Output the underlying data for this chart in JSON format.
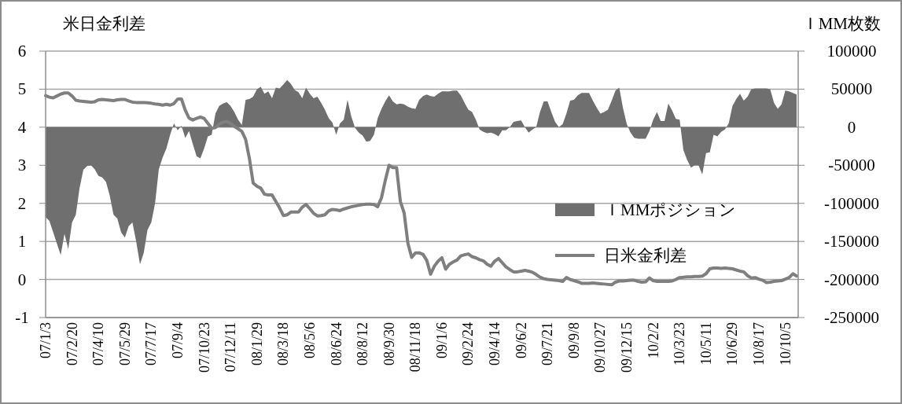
{
  "chart_data": {
    "type": "line",
    "ylabel": "米日金利差",
    "y2label": "ＩMM枚数",
    "categories": [
      "07/1/3",
      null,
      null,
      null,
      null,
      null,
      null,
      "07/2/20",
      null,
      null,
      null,
      null,
      null,
      null,
      "07/4/10",
      null,
      null,
      null,
      null,
      null,
      null,
      "07/5/29",
      null,
      null,
      null,
      null,
      null,
      null,
      "07/7/17",
      null,
      null,
      null,
      null,
      null,
      null,
      "07/9/4",
      null,
      null,
      null,
      null,
      null,
      null,
      "07/10/23",
      null,
      null,
      null,
      null,
      null,
      null,
      "07/12/11",
      null,
      null,
      null,
      null,
      null,
      null,
      "08/1/29",
      null,
      null,
      null,
      null,
      null,
      null,
      "08/3/18",
      null,
      null,
      null,
      null,
      null,
      null,
      "08/5/6",
      null,
      null,
      null,
      null,
      null,
      null,
      "08/6/24",
      null,
      null,
      null,
      null,
      null,
      null,
      "08/8/12",
      null,
      null,
      null,
      null,
      null,
      null,
      "08/9/30",
      null,
      null,
      null,
      null,
      null,
      null,
      "08/11/18",
      null,
      null,
      null,
      null,
      null,
      null,
      "09/1/6",
      null,
      null,
      null,
      null,
      null,
      null,
      "09/2/24",
      null,
      null,
      null,
      null,
      null,
      null,
      "09/4/14",
      null,
      null,
      null,
      null,
      null,
      null,
      "09/6/2",
      null,
      null,
      null,
      null,
      null,
      null,
      "09/7/21",
      null,
      null,
      null,
      null,
      null,
      null,
      "09/9/8",
      null,
      null,
      null,
      null,
      null,
      null,
      "09/10/27",
      null,
      null,
      null,
      null,
      null,
      null,
      "09/12/15",
      null,
      null,
      null,
      null,
      null,
      null,
      "10/2/2",
      null,
      null,
      null,
      null,
      null,
      null,
      "10/3/23",
      null,
      null,
      null,
      null,
      null,
      null,
      "10/5/11",
      null,
      null,
      null,
      null,
      null,
      null,
      "10/6/29",
      null,
      null,
      null,
      null,
      null,
      null,
      "10/8/17",
      null,
      null,
      null,
      null,
      null,
      null,
      "10/10/5",
      null,
      null,
      null
    ],
    "series": [
      {
        "name": "ＩMMポジション",
        "type": "area",
        "axis": "y2",
        "color": "#6f6f6f",
        "values": [
          -118000,
          -123000,
          -138000,
          -153000,
          -168000,
          -140000,
          -160000,
          -125000,
          -115000,
          -80000,
          -56000,
          -51000,
          -50000,
          -55000,
          -64000,
          -66000,
          -72000,
          -90000,
          -115000,
          -120000,
          -138000,
          -145000,
          -130000,
          -125000,
          -150000,
          -180000,
          -165000,
          -135000,
          -125000,
          -100000,
          -55000,
          -40000,
          -28000,
          -10000,
          5000,
          -4000,
          2000,
          -14000,
          -5000,
          -22000,
          -38000,
          -41000,
          -28000,
          -12000,
          -10000,
          18000,
          28000,
          31000,
          33000,
          28000,
          20000,
          10000,
          3000,
          36000,
          37000,
          40000,
          50000,
          53000,
          44000,
          47000,
          38000,
          52000,
          51000,
          56000,
          62000,
          57000,
          49000,
          46000,
          38000,
          52000,
          44000,
          38000,
          40000,
          32000,
          23000,
          12000,
          6000,
          -10000,
          5000,
          10000,
          36000,
          14000,
          -1000,
          -7000,
          -11000,
          -19000,
          -18000,
          -10000,
          12000,
          24000,
          34000,
          42000,
          34000,
          30000,
          31000,
          30000,
          27000,
          25000,
          24000,
          36000,
          41000,
          43000,
          41000,
          40000,
          44000,
          47000,
          47000,
          47000,
          48000,
          48000,
          42000,
          32000,
          23000,
          20000,
          10000,
          -3000,
          -6000,
          -8000,
          -7000,
          -9000,
          -12000,
          -4000,
          -4000,
          0,
          7000,
          8000,
          9000,
          0,
          -7000,
          -3000,
          0,
          20000,
          34000,
          34000,
          20000,
          7000,
          0,
          4000,
          18000,
          35000,
          36000,
          42000,
          45000,
          45000,
          45000,
          35000,
          26000,
          18000,
          20000,
          23000,
          35000,
          48000,
          52000,
          25000,
          4000,
          -7000,
          -14000,
          -15000,
          -15000,
          -15000,
          -5000,
          10000,
          20000,
          8000,
          8000,
          31000,
          22000,
          11000,
          10000,
          -30000,
          -43000,
          -53000,
          -50000,
          -50000,
          -62000,
          -34000,
          -33000,
          -10000,
          -12000,
          -6000,
          -3000,
          5000,
          28000,
          37000,
          44000,
          35000,
          40000,
          50000,
          51000,
          51000,
          51000,
          51000,
          50000,
          32000,
          24000,
          30000,
          48000,
          47000,
          45000,
          43000
        ]
      },
      {
        "name": "日米金利差",
        "axis": "y",
        "color": "#7f7f7f",
        "values": [
          4.83,
          4.79,
          4.77,
          4.82,
          4.87,
          4.9,
          4.9,
          4.82,
          4.71,
          4.69,
          4.68,
          4.67,
          4.66,
          4.67,
          4.72,
          4.73,
          4.72,
          4.71,
          4.7,
          4.72,
          4.73,
          4.73,
          4.69,
          4.66,
          4.65,
          4.65,
          4.65,
          4.64,
          4.63,
          4.61,
          4.6,
          4.58,
          4.6,
          4.58,
          4.62,
          4.74,
          4.74,
          4.45,
          4.24,
          4.19,
          4.23,
          4.27,
          4.23,
          4.1,
          3.97,
          3.99,
          4.08,
          4.13,
          4.15,
          4.1,
          4.02,
          3.96,
          3.89,
          3.68,
          3.18,
          2.53,
          2.45,
          2.4,
          2.24,
          2.22,
          2.22,
          2.05,
          1.88,
          1.68,
          1.7,
          1.77,
          1.77,
          1.77,
          1.9,
          1.97,
          1.86,
          1.74,
          1.67,
          1.68,
          1.7,
          1.8,
          1.84,
          1.83,
          1.81,
          1.85,
          1.88,
          1.91,
          1.93,
          1.95,
          1.97,
          1.98,
          1.98,
          1.97,
          1.91,
          2.15,
          2.6,
          3.0,
          2.94,
          2.94,
          2.05,
          1.75,
          0.95,
          0.58,
          0.7,
          0.7,
          0.66,
          0.5,
          0.14,
          0.35,
          0.48,
          0.57,
          0.27,
          0.4,
          0.46,
          0.51,
          0.62,
          0.65,
          0.67,
          0.6,
          0.57,
          0.52,
          0.49,
          0.4,
          0.35,
          0.48,
          0.55,
          0.44,
          0.33,
          0.26,
          0.2,
          0.2,
          0.22,
          0.24,
          0.22,
          0.19,
          0.13,
          0.06,
          0.02,
          0.0,
          -0.01,
          -0.02,
          -0.03,
          -0.05,
          0.05,
          0.0,
          -0.03,
          -0.06,
          -0.1,
          -0.1,
          -0.1,
          -0.09,
          -0.1,
          -0.11,
          -0.12,
          -0.13,
          -0.14,
          -0.07,
          -0.04,
          -0.04,
          -0.03,
          -0.02,
          -0.02,
          -0.05,
          -0.07,
          -0.06,
          0.04,
          -0.03,
          -0.05,
          -0.05,
          -0.05,
          -0.05,
          -0.04,
          0.0,
          0.05,
          0.06,
          0.07,
          0.07,
          0.08,
          0.08,
          0.09,
          0.15,
          0.28,
          0.3,
          0.3,
          0.29,
          0.3,
          0.29,
          0.28,
          0.25,
          0.22,
          0.2,
          0.1,
          0.04,
          0.05,
          0.01,
          -0.02,
          -0.08,
          -0.07,
          -0.05,
          -0.04,
          -0.03,
          0.01,
          0.05,
          0.15,
          0.09
        ]
      }
    ],
    "ylim": [
      -1,
      6
    ],
    "yticks": [
      -1,
      0,
      1,
      2,
      3,
      4,
      5,
      6
    ],
    "y2lim": [
      -250000,
      100000
    ],
    "y2ticks": [
      -250000,
      -200000,
      -150000,
      -100000,
      -50000,
      0,
      50000,
      100000
    ],
    "grid": "y",
    "legend": "right",
    "line_style": "solid",
    "marker": "none"
  }
}
